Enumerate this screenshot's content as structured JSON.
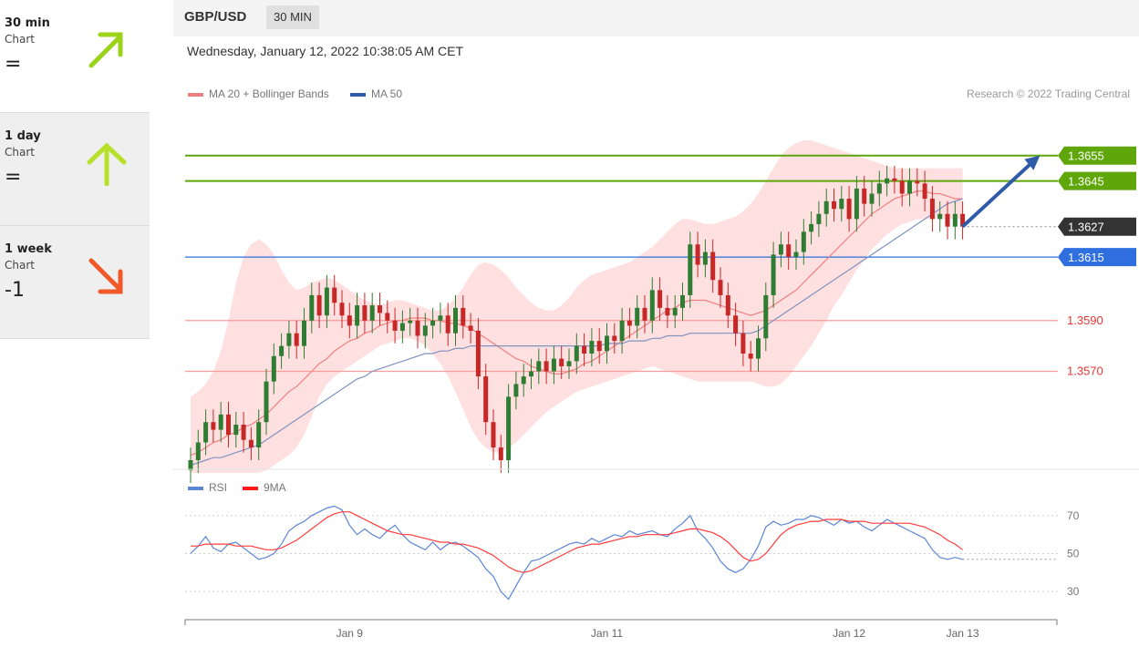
{
  "timeframes": [
    {
      "name": "30 min",
      "sub": "Chart",
      "signal": "=",
      "direction": "up",
      "color": "#9ad31a"
    },
    {
      "name": "1 day",
      "sub": "Chart",
      "signal": "=",
      "direction": "up",
      "color": "#b7e02a"
    },
    {
      "name": "1 week",
      "sub": "Chart",
      "signal": "-1",
      "direction": "down",
      "color": "#f2582a"
    }
  ],
  "header": {
    "pair": "GBP/USD",
    "timeframe": "30 MIN"
  },
  "timestamp": "Wednesday, January 12, 2022 10:38:05 AM CET",
  "legend": {
    "ma20": "MA 20 + Bollinger Bands",
    "ma50": "MA 50",
    "rsi": "RSI",
    "rsi_ma": "9MA"
  },
  "credit": "Research © 2022 Trading Central",
  "colors": {
    "up": "#2e7d32",
    "down": "#c62828",
    "target": "#5fa60a",
    "support": "#2f6fe0",
    "resistance": "#ff9a9a",
    "ma20": "#f08080",
    "ma50": "#7f93bf",
    "band": "#ffe0e0",
    "rsi": "#5b85d6",
    "rsi_ma": "#ff3b3b",
    "last": "#333333"
  },
  "chart_data": [
    {
      "type": "candlestick",
      "title": "GBP/USD 30 MIN",
      "ylim": [
        1.3535,
        1.3675
      ],
      "x_ticks": [
        {
          "label": "Jan 9",
          "i": 21
        },
        {
          "label": "Jan 11",
          "i": 55
        },
        {
          "label": "Jan 12",
          "i": 87
        },
        {
          "label": "Jan 13",
          "i": 102
        }
      ],
      "levels": [
        {
          "label": "1.3655",
          "value": 1.3655,
          "kind": "target"
        },
        {
          "label": "1.3645",
          "value": 1.3645,
          "kind": "target"
        },
        {
          "label": "1.3627",
          "value": 1.3627,
          "kind": "last"
        },
        {
          "label": "1.3615",
          "value": 1.3615,
          "kind": "support"
        },
        {
          "label": "1.3590",
          "value": 1.359,
          "kind": "resistance"
        },
        {
          "label": "1.3570",
          "value": 1.357,
          "kind": "resistance"
        }
      ],
      "closes": [
        1.3535,
        1.3542,
        1.355,
        1.3547,
        1.3553,
        1.3545,
        1.3549,
        1.3543,
        1.354,
        1.355,
        1.3566,
        1.3576,
        1.358,
        1.3585,
        1.358,
        1.359,
        1.36,
        1.3592,
        1.3603,
        1.3597,
        1.3592,
        1.3588,
        1.3596,
        1.359,
        1.3596,
        1.3593,
        1.359,
        1.3586,
        1.3589,
        1.359,
        1.3584,
        1.3588,
        1.359,
        1.3592,
        1.3585,
        1.3595,
        1.3588,
        1.3586,
        1.3568,
        1.355,
        1.354,
        1.3535,
        1.356,
        1.3565,
        1.3568,
        1.357,
        1.3574,
        1.357,
        1.3575,
        1.3572,
        1.3574,
        1.358,
        1.3577,
        1.3582,
        1.3578,
        1.3584,
        1.3582,
        1.359,
        1.3588,
        1.3595,
        1.359,
        1.3602,
        1.3595,
        1.3592,
        1.3595,
        1.36,
        1.362,
        1.3612,
        1.3617,
        1.3606,
        1.36,
        1.3592,
        1.3585,
        1.3577,
        1.3575,
        1.3583,
        1.36,
        1.3616,
        1.362,
        1.3615,
        1.3617,
        1.3625,
        1.3628,
        1.3632,
        1.3637,
        1.3634,
        1.3638,
        1.363,
        1.3642,
        1.3636,
        1.364,
        1.3644,
        1.3646,
        1.3645,
        1.364,
        1.3645,
        1.3644,
        1.3638,
        1.363,
        1.3632,
        1.3627,
        1.3632,
        1.3627
      ],
      "ma20": [
        1.3537,
        1.3538,
        1.354,
        1.3542,
        1.3543,
        1.3545,
        1.3546,
        1.3548,
        1.3549,
        1.3551,
        1.3553,
        1.3556,
        1.3559,
        1.3562,
        1.3564,
        1.3567,
        1.357,
        1.3573,
        1.3575,
        1.3578,
        1.358,
        1.3582,
        1.3583,
        1.3585,
        1.3586,
        1.3588,
        1.3589,
        1.359,
        1.359,
        1.3591,
        1.3591,
        1.3591,
        1.359,
        1.359,
        1.3589,
        1.3589,
        1.3588,
        1.3587,
        1.3585,
        1.3583,
        1.3581,
        1.3579,
        1.3577,
        1.3575,
        1.3574,
        1.3572,
        1.3571,
        1.357,
        1.3569,
        1.3569,
        1.357,
        1.3571,
        1.3573,
        1.3574,
        1.3576,
        1.3578,
        1.358,
        1.3582,
        1.3584,
        1.3586,
        1.3588,
        1.359,
        1.3592,
        1.3594,
        1.3595,
        1.3597,
        1.3598,
        1.3598,
        1.3598,
        1.3597,
        1.3596,
        1.3595,
        1.3594,
        1.3593,
        1.3592,
        1.3593,
        1.3594,
        1.3596,
        1.3598,
        1.36,
        1.3602,
        1.3605,
        1.3608,
        1.3611,
        1.3614,
        1.3617,
        1.362,
        1.3623,
        1.3626,
        1.3629,
        1.3632,
        1.3634,
        1.3636,
        1.3638,
        1.3639,
        1.364,
        1.3641,
        1.3641,
        1.364,
        1.364,
        1.3639,
        1.3638,
        1.3638
      ],
      "ma50": [
        1.3533,
        1.3534,
        1.3535,
        1.3536,
        1.3536,
        1.3537,
        1.3538,
        1.3539,
        1.354,
        1.3541,
        1.3543,
        1.3545,
        1.3547,
        1.3549,
        1.3551,
        1.3553,
        1.3555,
        1.3557,
        1.3559,
        1.3561,
        1.3563,
        1.3565,
        1.3567,
        1.3568,
        1.357,
        1.3571,
        1.3572,
        1.3573,
        1.3574,
        1.3575,
        1.3576,
        1.3577,
        1.3577,
        1.3578,
        1.3578,
        1.3579,
        1.3579,
        1.358,
        1.358,
        1.358,
        1.358,
        1.358,
        1.358,
        1.358,
        1.358,
        1.358,
        1.358,
        1.358,
        1.358,
        1.358,
        1.358,
        1.358,
        1.358,
        1.358,
        1.358,
        1.3581,
        1.3581,
        1.3581,
        1.3582,
        1.3582,
        1.3582,
        1.3583,
        1.3583,
        1.3584,
        1.3584,
        1.3584,
        1.3585,
        1.3585,
        1.3585,
        1.3585,
        1.3585,
        1.3585,
        1.3585,
        1.3585,
        1.3585,
        1.3586,
        1.3588,
        1.359,
        1.3592,
        1.3594,
        1.3596,
        1.3598,
        1.36,
        1.3602,
        1.3604,
        1.3606,
        1.3608,
        1.361,
        1.3612,
        1.3614,
        1.3616,
        1.3618,
        1.362,
        1.3622,
        1.3624,
        1.3626,
        1.3628,
        1.363,
        1.3632,
        1.3634,
        1.3636,
        1.3637,
        1.3638
      ],
      "bb_upper": [
        1.356,
        1.3562,
        1.3565,
        1.357,
        1.3578,
        1.359,
        1.3605,
        1.3615,
        1.362,
        1.3622,
        1.362,
        1.3616,
        1.361,
        1.3605,
        1.3602,
        1.3603,
        1.3605,
        1.3606,
        1.3607,
        1.3606,
        1.3604,
        1.3602,
        1.36,
        1.3598,
        1.3597,
        1.3596,
        1.3597,
        1.3598,
        1.3598,
        1.3597,
        1.3596,
        1.3595,
        1.3594,
        1.3594,
        1.3596,
        1.3599,
        1.3603,
        1.3608,
        1.3612,
        1.3613,
        1.3612,
        1.361,
        1.3607,
        1.3603,
        1.36,
        1.3597,
        1.3595,
        1.3594,
        1.3594,
        1.3596,
        1.3599,
        1.3603,
        1.3606,
        1.3608,
        1.3609,
        1.361,
        1.3611,
        1.3612,
        1.3613,
        1.3615,
        1.3617,
        1.3619,
        1.3622,
        1.3625,
        1.3628,
        1.363,
        1.363,
        1.3629,
        1.3628,
        1.3628,
        1.3629,
        1.363,
        1.3631,
        1.3633,
        1.3636,
        1.364,
        1.3645,
        1.365,
        1.3655,
        1.3658,
        1.366,
        1.3661,
        1.3661,
        1.366,
        1.3659,
        1.3658,
        1.3657,
        1.3656,
        1.3655,
        1.3654,
        1.3653,
        1.3652,
        1.3651,
        1.365,
        1.365,
        1.365,
        1.365,
        1.365,
        1.365,
        1.365,
        1.365,
        1.365,
        1.365
      ],
      "bb_lower": [
        1.353,
        1.353,
        1.353,
        1.353,
        1.353,
        1.353,
        1.353,
        1.353,
        1.353,
        1.353,
        1.3531,
        1.3533,
        1.3535,
        1.3537,
        1.354,
        1.3545,
        1.3552,
        1.356,
        1.3565,
        1.3568,
        1.357,
        1.3572,
        1.3574,
        1.3576,
        1.3578,
        1.358,
        1.3581,
        1.3582,
        1.3583,
        1.3583,
        1.3582,
        1.358,
        1.3577,
        1.3573,
        1.3568,
        1.3562,
        1.3555,
        1.3548,
        1.3543,
        1.354,
        1.3538,
        1.3538,
        1.354,
        1.3542,
        1.3545,
        1.3548,
        1.3551,
        1.3554,
        1.3556,
        1.3558,
        1.356,
        1.3562,
        1.3563,
        1.3564,
        1.3565,
        1.3566,
        1.3567,
        1.3568,
        1.3569,
        1.357,
        1.3571,
        1.3572,
        1.3571,
        1.357,
        1.3569,
        1.3568,
        1.3567,
        1.3566,
        1.3566,
        1.3566,
        1.3566,
        1.3566,
        1.3566,
        1.3566,
        1.3566,
        1.3565,
        1.3564,
        1.3564,
        1.3565,
        1.3568,
        1.3572,
        1.3576,
        1.358,
        1.3585,
        1.359,
        1.3596,
        1.36,
        1.3605,
        1.361,
        1.3614,
        1.3618,
        1.3621,
        1.3624,
        1.3626,
        1.3628,
        1.3629,
        1.363,
        1.363,
        1.363,
        1.363,
        1.363,
        1.363,
        1.363
      ],
      "projection": {
        "from_i": 102,
        "from": 1.3627,
        "to_i": 108,
        "to": 1.3655
      }
    },
    {
      "type": "line",
      "title": "RSI",
      "ylim": [
        20,
        80
      ],
      "y_ticks": [
        70,
        50,
        30
      ],
      "series": [
        {
          "name": "RSI",
          "values": [
            50,
            54,
            59,
            53,
            51,
            55,
            56,
            53,
            50,
            47,
            48,
            50,
            55,
            62,
            65,
            67,
            70,
            72,
            74,
            75,
            73,
            65,
            60,
            63,
            60,
            58,
            62,
            65,
            60,
            56,
            54,
            52,
            56,
            52,
            55,
            56,
            54,
            51,
            48,
            42,
            38,
            30,
            26,
            33,
            40,
            46,
            47,
            49,
            51,
            53,
            55,
            56,
            55,
            58,
            56,
            58,
            60,
            59,
            62,
            60,
            61,
            62,
            60,
            59,
            63,
            66,
            70,
            62,
            58,
            53,
            46,
            42,
            40,
            42,
            47,
            54,
            64,
            67,
            65,
            66,
            68,
            68,
            70,
            69,
            67,
            65,
            68,
            66,
            67,
            64,
            62,
            65,
            68,
            66,
            64,
            62,
            60,
            58,
            52,
            48,
            47,
            48,
            47
          ]
        },
        {
          "name": "9MA",
          "values": [
            54,
            54,
            55,
            55,
            55,
            55,
            54,
            54,
            54,
            53,
            52,
            52,
            53,
            55,
            57,
            60,
            63,
            66,
            69,
            71,
            72,
            72,
            70,
            68,
            66,
            64,
            62,
            61,
            60,
            60,
            59,
            58,
            57,
            56,
            56,
            55,
            55,
            54,
            53,
            51,
            49,
            46,
            43,
            41,
            40,
            41,
            43,
            45,
            47,
            49,
            51,
            53,
            54,
            55,
            55,
            56,
            57,
            58,
            59,
            59,
            60,
            60,
            60,
            60,
            61,
            62,
            63,
            63,
            62,
            61,
            59,
            56,
            52,
            48,
            46,
            47,
            50,
            55,
            60,
            63,
            65,
            66,
            67,
            67,
            68,
            68,
            68,
            67,
            67,
            67,
            66,
            66,
            66,
            66,
            66,
            66,
            65,
            64,
            62,
            60,
            57,
            55,
            52
          ]
        }
      ]
    }
  ]
}
